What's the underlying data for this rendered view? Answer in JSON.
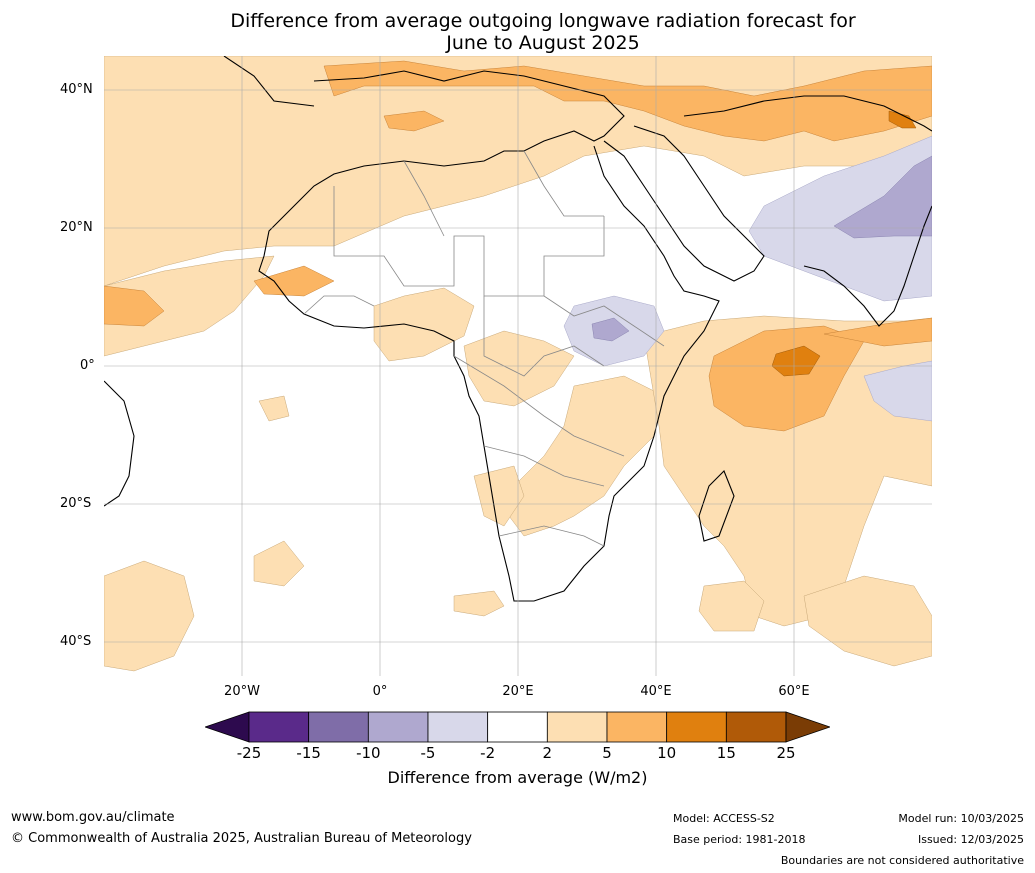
{
  "title": {
    "line1": "Difference from average outgoing longwave radiation forecast for",
    "line2": "June to August 2025"
  },
  "map": {
    "lat_labels": [
      "40°N",
      "20°N",
      "0°",
      "20°S",
      "40°S"
    ],
    "lon_labels": [
      "20°W",
      "0°",
      "20°E",
      "40°E",
      "60°E"
    ],
    "grid": true
  },
  "colorbar": {
    "title": "Difference from average (W/m2)",
    "ticks": [
      "-25",
      "-15",
      "-10",
      "-5",
      "-2",
      "2",
      "5",
      "10",
      "15",
      "25"
    ],
    "colors": [
      "#2d0a4e",
      "#5a2a8a",
      "#7f6da8",
      "#afa8cf",
      "#d8d8ea",
      "#ffffff",
      "#fddfb3",
      "#fbb563",
      "#e0800f",
      "#b05a08",
      "#7a3c05"
    ]
  },
  "footer": {
    "website": "www.bom.gov.au/climate",
    "copyright": "© Commonwealth of Australia 2025, Australian Bureau of Meteorology",
    "model": "Model: ACCESS-S2",
    "base_period": "Base period: 1981-2018",
    "model_run": "Model run: 10/03/2025",
    "issued": "Issued: 12/03/2025",
    "disclaimer": "Boundaries are not considered authoritative"
  }
}
